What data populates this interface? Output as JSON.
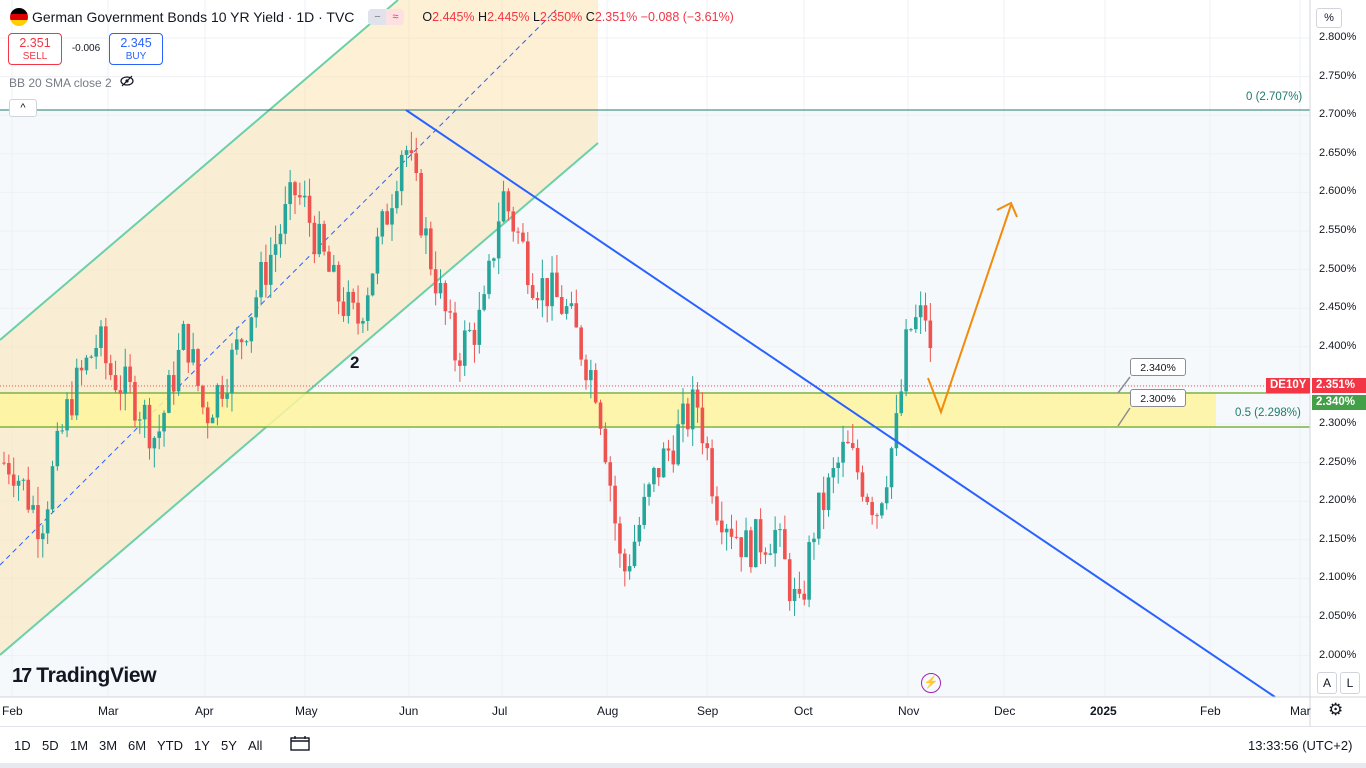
{
  "header": {
    "title": "German Government Bonds 10 YR Yield · 1D · TVC",
    "pill_left": "−",
    "pill_right": "≈",
    "ohlc": {
      "o_label": "O",
      "o": "2.445%",
      "h_label": "H",
      "h": "2.445%",
      "l_label": "L",
      "l": "2.350%",
      "c_label": "C",
      "c": "2.351%",
      "change": "−0.088 (−3.61%)"
    }
  },
  "trade": {
    "sell_price": "2.351",
    "sell_label": "SELL",
    "spread": "-0.006",
    "buy_price": "2.345",
    "buy_label": "BUY"
  },
  "indicator": {
    "label": "BB 20 SMA close 2",
    "icon": "eye-crossed-icon"
  },
  "collapse_glyph": "^",
  "price_axis": {
    "unit": "%",
    "ticks": [
      "2.800%",
      "2.750%",
      "2.700%",
      "2.650%",
      "2.600%",
      "2.550%",
      "2.500%",
      "2.450%",
      "2.400%",
      "2.350%",
      "2.300%",
      "2.250%",
      "2.200%",
      "2.150%",
      "2.100%",
      "2.050%",
      "2.000%"
    ],
    "symbol_tag": "DE10Y",
    "last_price": "2.351%",
    "level_tag": "2.340%"
  },
  "annotations": {
    "fib_top": "0 (2.707%)",
    "fib_mid": "0.5 (2.298%)",
    "callout_upper": "2.340%",
    "callout_lower": "2.300%",
    "wave_label": "2"
  },
  "time_axis": {
    "labels": [
      "Feb",
      "Mar",
      "Apr",
      "May",
      "Jun",
      "Jul",
      "Aug",
      "Sep",
      "Oct",
      "Nov",
      "Dec",
      "2025",
      "Feb",
      "Mar"
    ]
  },
  "axis_buttons": {
    "auto": "A",
    "log": "L"
  },
  "logo": {
    "mark": "17",
    "text": "TradingView"
  },
  "bottom_bar": {
    "timeframes": [
      "1D",
      "5D",
      "1M",
      "3M",
      "6M",
      "YTD",
      "1Y",
      "5Y",
      "All"
    ],
    "clock": "13:33:56 (UTC+2)"
  },
  "colors": {
    "up": "#26a69a",
    "down": "#ef5350",
    "trendline": "#2962ff",
    "channel": "#6bd0a8",
    "zone": "#fff59d",
    "arrow": "#f28b0c"
  },
  "chart_data": {
    "type": "candlestick",
    "title": "German Government Bonds 10 YR Yield · 1D · TVC",
    "unit": "%",
    "ylim": [
      1.985,
      2.825
    ],
    "x_ticks": [
      "Feb",
      "Mar",
      "Apr",
      "May",
      "Jun",
      "Jul",
      "Aug",
      "Sep",
      "Oct",
      "Nov",
      "Dec",
      "2025",
      "Feb",
      "Mar"
    ],
    "series": [
      {
        "month": "Feb",
        "x": 0.0,
        "value": 2.25
      },
      {
        "month": "Feb",
        "x": 0.3,
        "value": 2.17
      },
      {
        "month": "Feb",
        "x": 0.6,
        "value": 2.33
      },
      {
        "month": "Feb",
        "x": 0.9,
        "value": 2.41
      },
      {
        "month": "Mar",
        "x": 1.0,
        "value": 2.37
      },
      {
        "month": "Mar",
        "x": 1.3,
        "value": 2.33
      },
      {
        "month": "Mar",
        "x": 1.5,
        "value": 2.28
      },
      {
        "month": "Mar",
        "x": 1.8,
        "value": 2.42
      },
      {
        "month": "Apr",
        "x": 2.0,
        "value": 2.31
      },
      {
        "month": "Apr",
        "x": 2.3,
        "value": 2.39
      },
      {
        "month": "Apr",
        "x": 2.6,
        "value": 2.5
      },
      {
        "month": "Apr",
        "x": 2.9,
        "value": 2.6
      },
      {
        "month": "May",
        "x": 3.0,
        "value": 2.58
      },
      {
        "month": "May",
        "x": 3.3,
        "value": 2.47
      },
      {
        "month": "May",
        "x": 3.5,
        "value": 2.43
      },
      {
        "month": "May",
        "x": 3.8,
        "value": 2.58
      },
      {
        "month": "Jun",
        "x": 3.95,
        "value": 2.67
      },
      {
        "month": "Jun",
        "x": 4.2,
        "value": 2.53
      },
      {
        "month": "Jun",
        "x": 4.5,
        "value": 2.39
      },
      {
        "month": "Jun",
        "x": 4.8,
        "value": 2.44
      },
      {
        "month": "Jul",
        "x": 5.0,
        "value": 2.6
      },
      {
        "month": "Jul",
        "x": 5.3,
        "value": 2.49
      },
      {
        "month": "Jul",
        "x": 5.6,
        "value": 2.45
      },
      {
        "month": "Jul",
        "x": 5.9,
        "value": 2.35
      },
      {
        "month": "Aug",
        "x": 6.0,
        "value": 2.26
      },
      {
        "month": "Aug",
        "x": 6.15,
        "value": 2.1
      },
      {
        "month": "Aug",
        "x": 6.5,
        "value": 2.24
      },
      {
        "month": "Aug",
        "x": 6.9,
        "value": 2.33
      },
      {
        "month": "Sep",
        "x": 7.1,
        "value": 2.2
      },
      {
        "month": "Sep",
        "x": 7.4,
        "value": 2.14
      },
      {
        "month": "Sep",
        "x": 7.7,
        "value": 2.16
      },
      {
        "month": "Sep",
        "x": 7.95,
        "value": 2.05
      },
      {
        "month": "Oct",
        "x": 8.1,
        "value": 2.17
      },
      {
        "month": "Oct",
        "x": 8.4,
        "value": 2.27
      },
      {
        "month": "Oct",
        "x": 8.7,
        "value": 2.19
      },
      {
        "month": "Oct",
        "x": 8.9,
        "value": 2.3
      },
      {
        "month": "Nov",
        "x": 9.0,
        "value": 2.42
      },
      {
        "month": "Nov",
        "x": 9.2,
        "value": 2.445
      },
      {
        "month": "Nov",
        "x": 9.25,
        "value": 2.351
      }
    ]
  }
}
